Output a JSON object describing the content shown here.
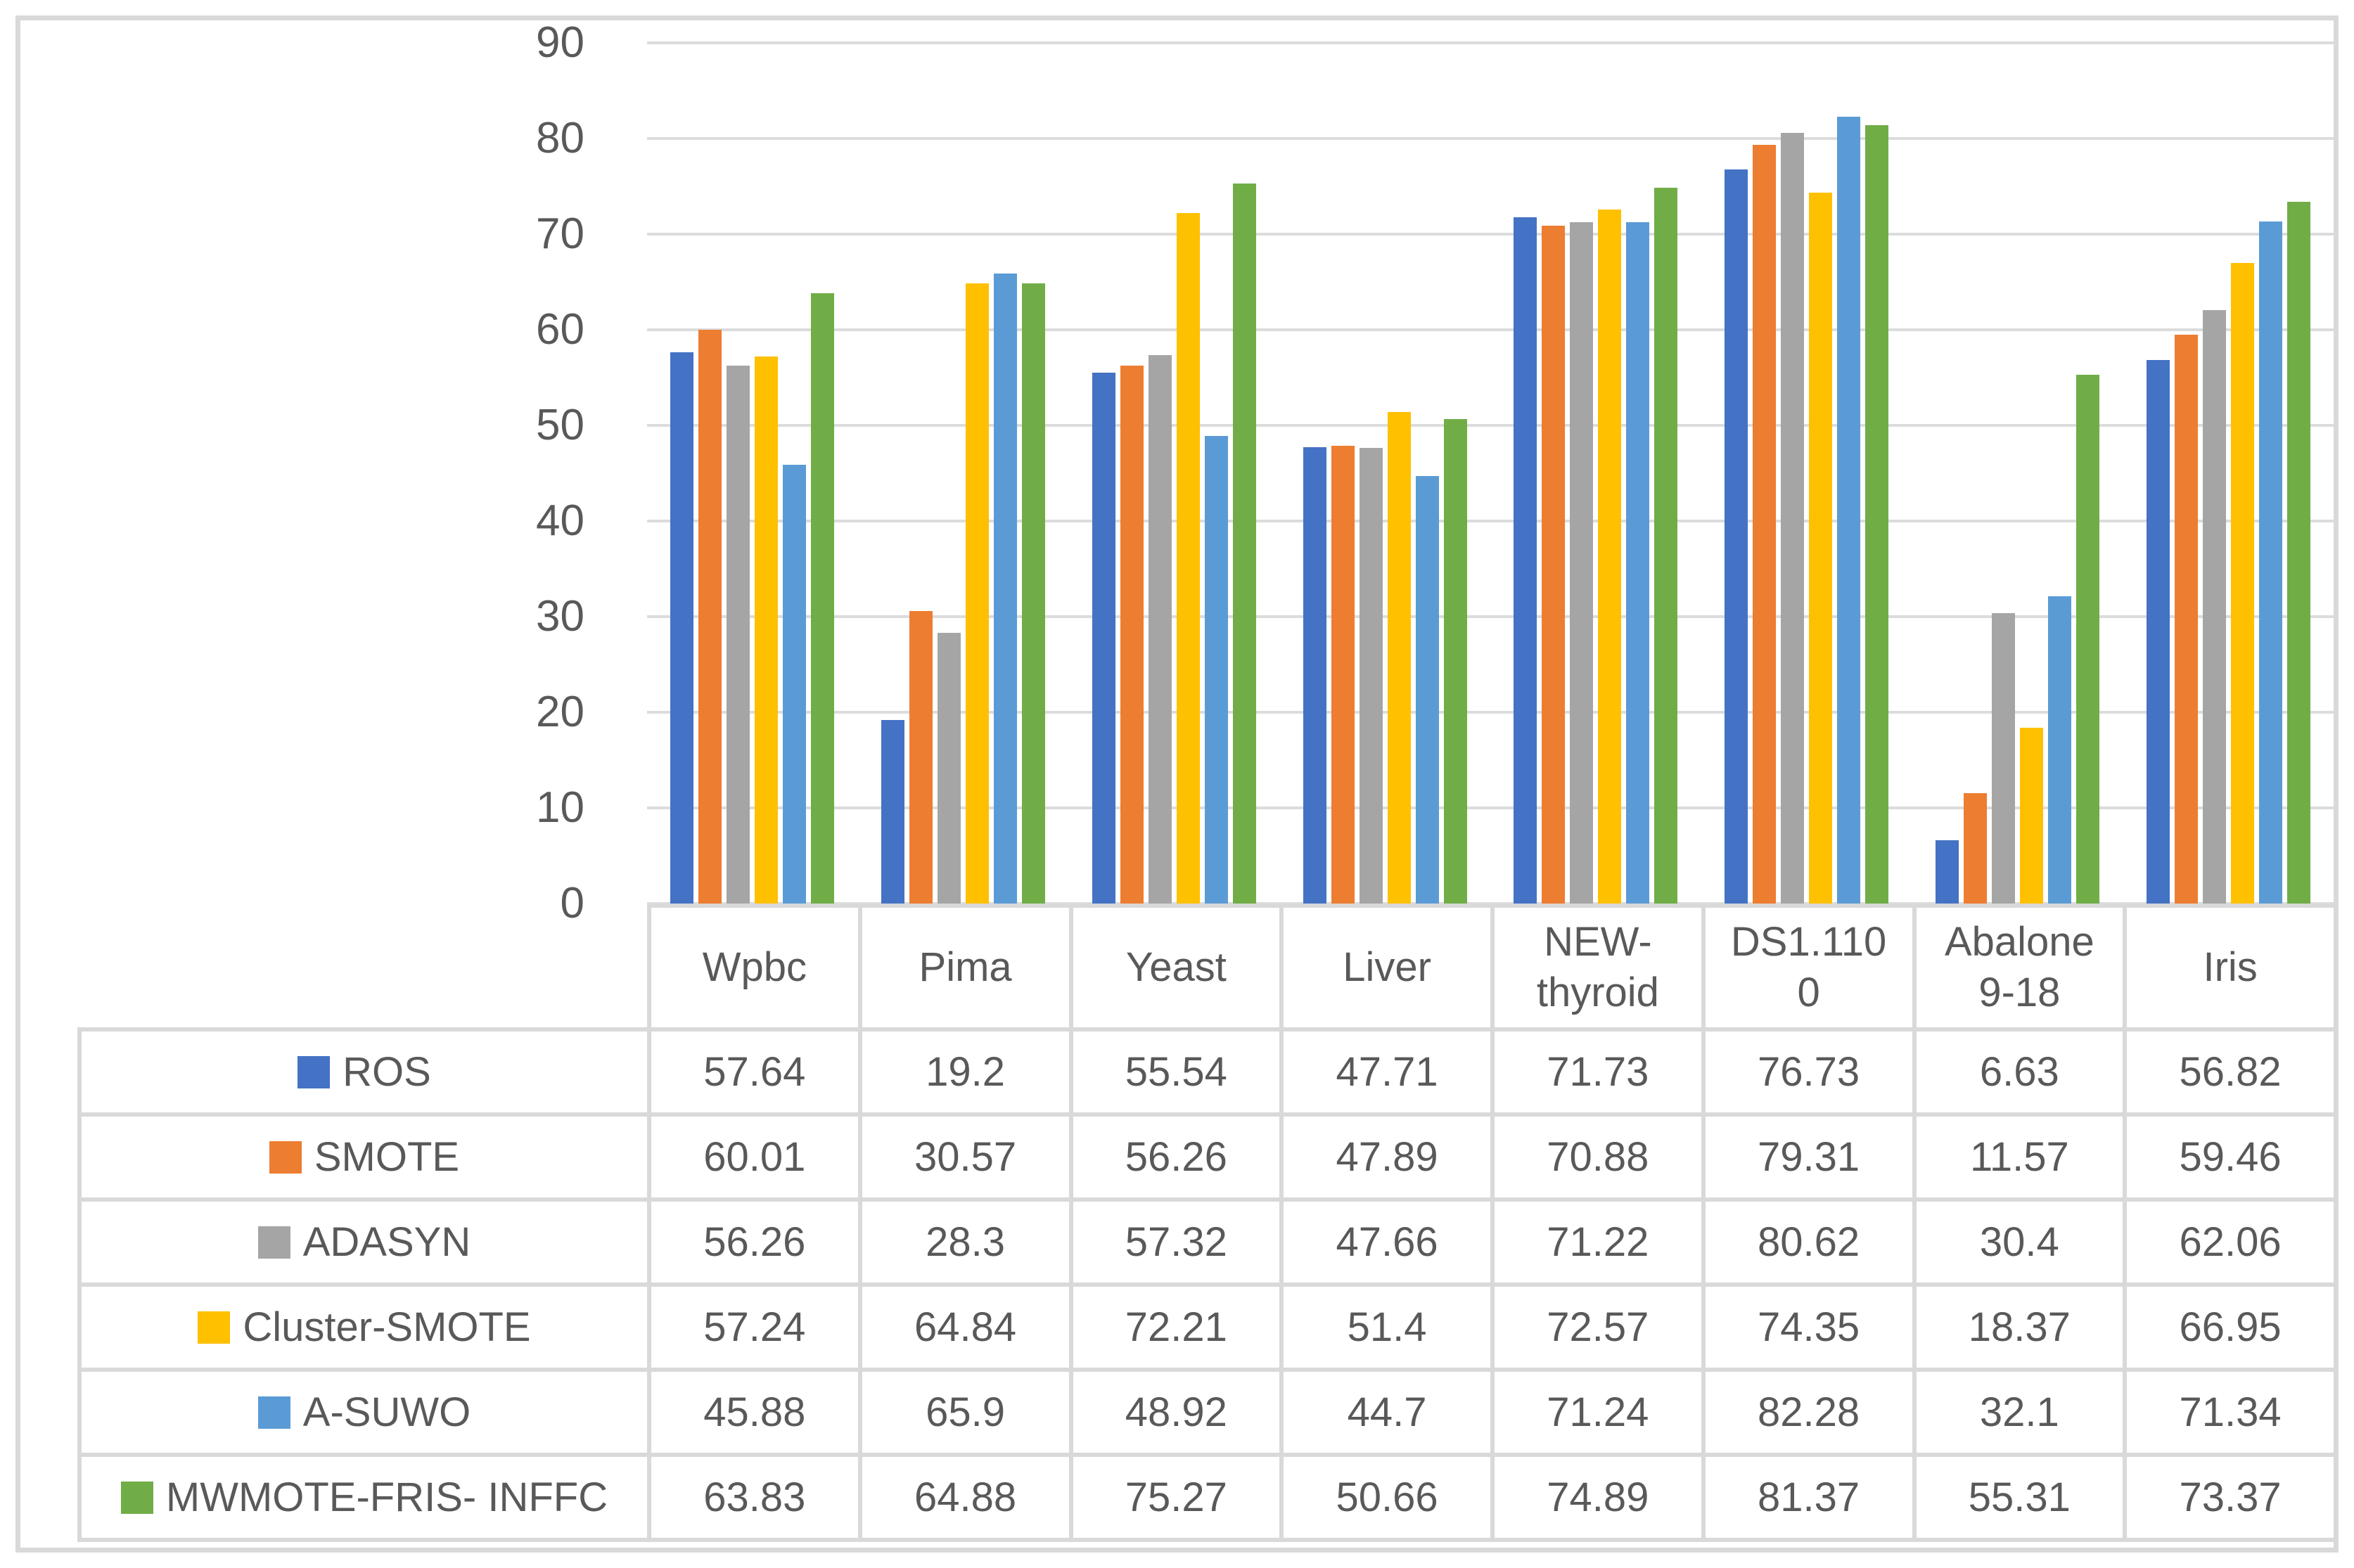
{
  "chart_data": {
    "type": "bar",
    "title": "",
    "xlabel": "",
    "ylabel": "",
    "categories": [
      "Wpbc",
      "Pima",
      "Yeast",
      "Liver",
      "NEW-thyroid",
      "DS1.1100",
      "Abalone 9-18",
      "Iris"
    ],
    "category_labels_wrapped": [
      "Wpbc",
      "Pima",
      "Yeast",
      "Liver",
      "NEW-\nthyroid",
      "DS1.110\n0",
      "Abalone\n9-18",
      "Iris"
    ],
    "series": [
      {
        "name": "ROS",
        "color": "#4472C4",
        "values": [
          57.64,
          19.2,
          55.54,
          47.71,
          71.73,
          76.73,
          6.63,
          56.82
        ]
      },
      {
        "name": "SMOTE",
        "color": "#ED7D31",
        "values": [
          60.01,
          30.57,
          56.26,
          47.89,
          70.88,
          79.31,
          11.57,
          59.46
        ]
      },
      {
        "name": "ADASYN",
        "color": "#A5A5A5",
        "values": [
          56.26,
          28.3,
          57.32,
          47.66,
          71.22,
          80.62,
          30.4,
          62.06
        ]
      },
      {
        "name": "Cluster-SMOTE",
        "color": "#FFC000",
        "values": [
          57.24,
          64.84,
          72.21,
          51.4,
          72.57,
          74.35,
          18.37,
          66.95
        ]
      },
      {
        "name": "A-SUWO",
        "color": "#5B9BD5",
        "values": [
          45.88,
          65.9,
          48.92,
          44.7,
          71.24,
          82.28,
          32.1,
          71.34
        ]
      },
      {
        "name": "MWMOTE-FRIS- INFFC",
        "color": "#70AD47",
        "values": [
          63.83,
          64.88,
          75.27,
          50.66,
          74.89,
          81.37,
          55.31,
          73.37
        ]
      }
    ],
    "y_axis": {
      "min": 0,
      "max": 90,
      "step": 10,
      "tick_labels": [
        "90",
        "80",
        "70",
        "60",
        "50",
        "40",
        "30",
        "20",
        "10",
        "0"
      ]
    },
    "ylim": [
      0,
      90
    ],
    "grid": true,
    "legend_position": "table-left-column"
  },
  "colors": {
    "frame_border": "#d9d9d9",
    "gridline": "#dcdcdc",
    "table_border": "#d9d9d9",
    "text": "#595959",
    "background": "#ffffff"
  }
}
